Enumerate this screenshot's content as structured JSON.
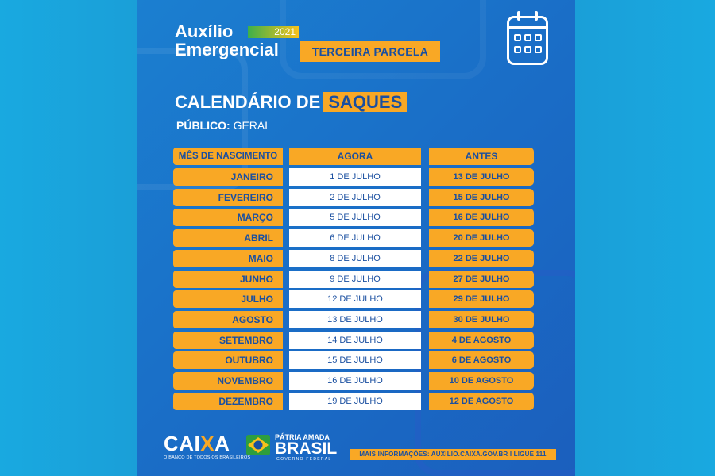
{
  "brand": {
    "name_line1": "Auxílio",
    "name_line2": "Emergencial",
    "year": "2021"
  },
  "tag": "TERCEIRA PARCELA",
  "icon": "calendar-icon",
  "title": {
    "prefix": "CALENDÁRIO DE",
    "highlight": "SAQUES"
  },
  "public": {
    "label": "PÚBLICO:",
    "value": "GERAL"
  },
  "table": {
    "headers": [
      "MÊS DE NASCIMENTO",
      "AGORA",
      "ANTES"
    ],
    "rows": [
      [
        "JANEIRO",
        "1 DE JULHO",
        "13 DE JULHO"
      ],
      [
        "FEVEREIRO",
        "2 DE JULHO",
        "15 DE JULHO"
      ],
      [
        "MARÇO",
        "5 DE JULHO",
        "16 DE JULHO"
      ],
      [
        "ABRIL",
        "6 DE JULHO",
        "20 DE JULHO"
      ],
      [
        "MAIO",
        "8 DE JULHO",
        "22 DE JULHO"
      ],
      [
        "JUNHO",
        "9 DE JULHO",
        "27 DE JULHO"
      ],
      [
        "JULHO",
        "12 DE JULHO",
        "29 DE JULHO"
      ],
      [
        "AGOSTO",
        "13 DE JULHO",
        "30 DE JULHO"
      ],
      [
        "SETEMBRO",
        "14 DE JULHO",
        "4 DE AGOSTO"
      ],
      [
        "OUTUBRO",
        "15 DE JULHO",
        "6 DE AGOSTO"
      ],
      [
        "NOVEMBRO",
        "16 DE JULHO",
        "10 DE AGOSTO"
      ],
      [
        "DEZEMBRO",
        "19 DE JULHO",
        "12 DE AGOSTO"
      ]
    ]
  },
  "footer": {
    "caixa": {
      "word_pre": "CAI",
      "word_x": "X",
      "word_post": "A",
      "slogan": "O BANCO DE TODOS OS BRASILEIROS"
    },
    "gov": {
      "line1": "PÁTRIA AMADA",
      "line2": "BRASIL",
      "line3": "GOVERNO FEDERAL"
    },
    "info": "MAIS INFORMAÇÕES: AUXILIO.CAIXA.GOV.BR I LIGUE 111"
  },
  "colors": {
    "orange": "#f9a825",
    "navy_text": "#1a4fa0",
    "card_blue": "#1a6cc6",
    "background": "#15a3dc"
  }
}
